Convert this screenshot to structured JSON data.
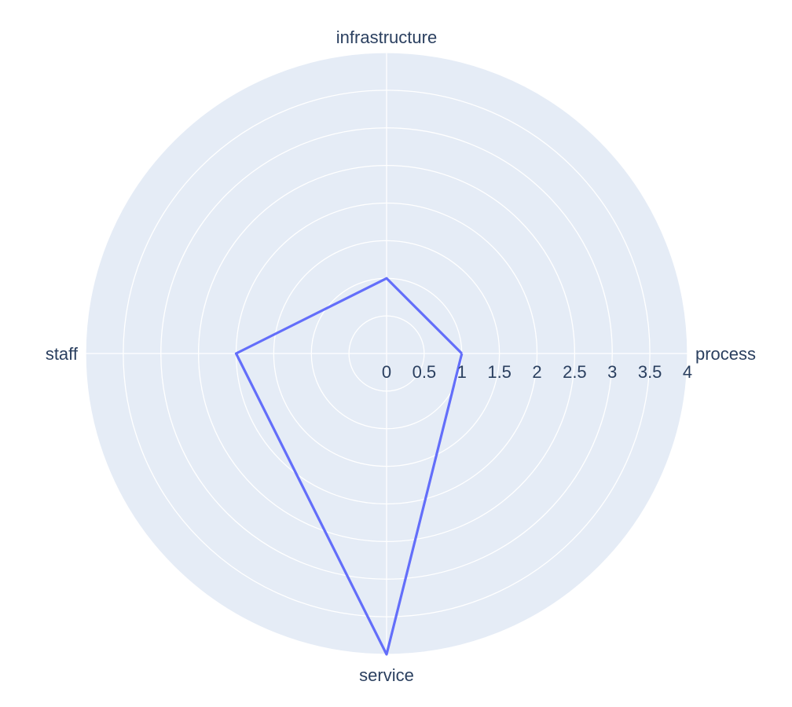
{
  "chart_data": {
    "type": "radar",
    "categories": [
      "process",
      "service",
      "staff",
      "infrastructure"
    ],
    "series": [
      {
        "values": [
          1,
          4,
          2,
          1
        ]
      }
    ],
    "radial_range": [
      0,
      4
    ],
    "radial_ticks": [
      "0",
      "0.5",
      "1",
      "1.5",
      "2",
      "2.5",
      "3",
      "3.5",
      "4"
    ],
    "title": "",
    "legend": "none",
    "grid": true,
    "colors": {
      "background": "#e5ecf6",
      "grid": "#ffffff",
      "line": "#636efa",
      "text": "#2a3f5f"
    }
  }
}
